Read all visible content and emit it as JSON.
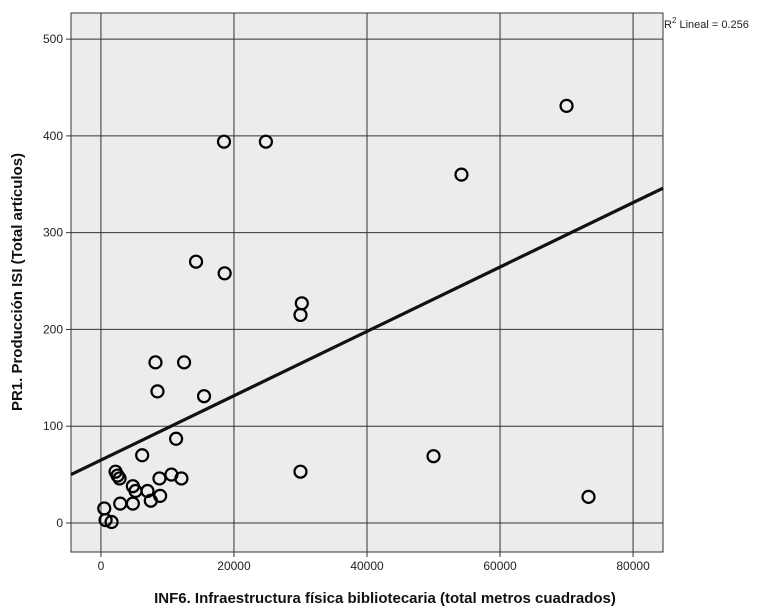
{
  "chart_data": {
    "type": "scatter",
    "xlabel": "INF6. Infraestructura física bibliotecaria (total metros cuadrados)",
    "ylabel": "PR1. Producción ISI (Total artículos)",
    "xlim": [
      -4500,
      84500
    ],
    "ylim": [
      -30,
      527
    ],
    "xticks": [
      0,
      20000,
      40000,
      60000,
      80000
    ],
    "yticks": [
      0,
      100,
      200,
      300,
      400,
      500
    ],
    "xtick_labels": [
      "0",
      "20000",
      "40000",
      "60000",
      "80000"
    ],
    "ytick_labels": [
      "0",
      "100",
      "200",
      "300",
      "400",
      "500"
    ],
    "grid": true,
    "plot_background": "#ececec",
    "marker": "open-circle",
    "annotation": {
      "prefix": "R",
      "superscript": "2",
      "text": " Lineal = 0.256"
    },
    "fit_line": {
      "x": [
        -4500,
        84500
      ],
      "y": [
        50,
        346
      ]
    },
    "points": [
      {
        "x": 70000,
        "y": 431
      },
      {
        "x": 18500,
        "y": 394
      },
      {
        "x": 24800,
        "y": 394
      },
      {
        "x": 54200,
        "y": 360
      },
      {
        "x": 14300,
        "y": 270
      },
      {
        "x": 18600,
        "y": 258
      },
      {
        "x": 30200,
        "y": 227
      },
      {
        "x": 30000,
        "y": 215
      },
      {
        "x": 8200,
        "y": 166
      },
      {
        "x": 12500,
        "y": 166
      },
      {
        "x": 8500,
        "y": 136
      },
      {
        "x": 15500,
        "y": 131
      },
      {
        "x": 11300,
        "y": 87
      },
      {
        "x": 6200,
        "y": 70
      },
      {
        "x": 50000,
        "y": 69
      },
      {
        "x": 30000,
        "y": 53
      },
      {
        "x": 2200,
        "y": 53
      },
      {
        "x": 2500,
        "y": 49
      },
      {
        "x": 2800,
        "y": 46
      },
      {
        "x": 10600,
        "y": 50
      },
      {
        "x": 12100,
        "y": 46
      },
      {
        "x": 8800,
        "y": 46
      },
      {
        "x": 4800,
        "y": 38
      },
      {
        "x": 5200,
        "y": 33
      },
      {
        "x": 7000,
        "y": 33
      },
      {
        "x": 8900,
        "y": 28
      },
      {
        "x": 7500,
        "y": 23
      },
      {
        "x": 2900,
        "y": 20
      },
      {
        "x": 4800,
        "y": 20
      },
      {
        "x": 73300,
        "y": 27
      },
      {
        "x": 500,
        "y": 15
      },
      {
        "x": 700,
        "y": 3
      },
      {
        "x": 1600,
        "y": 1
      }
    ]
  }
}
